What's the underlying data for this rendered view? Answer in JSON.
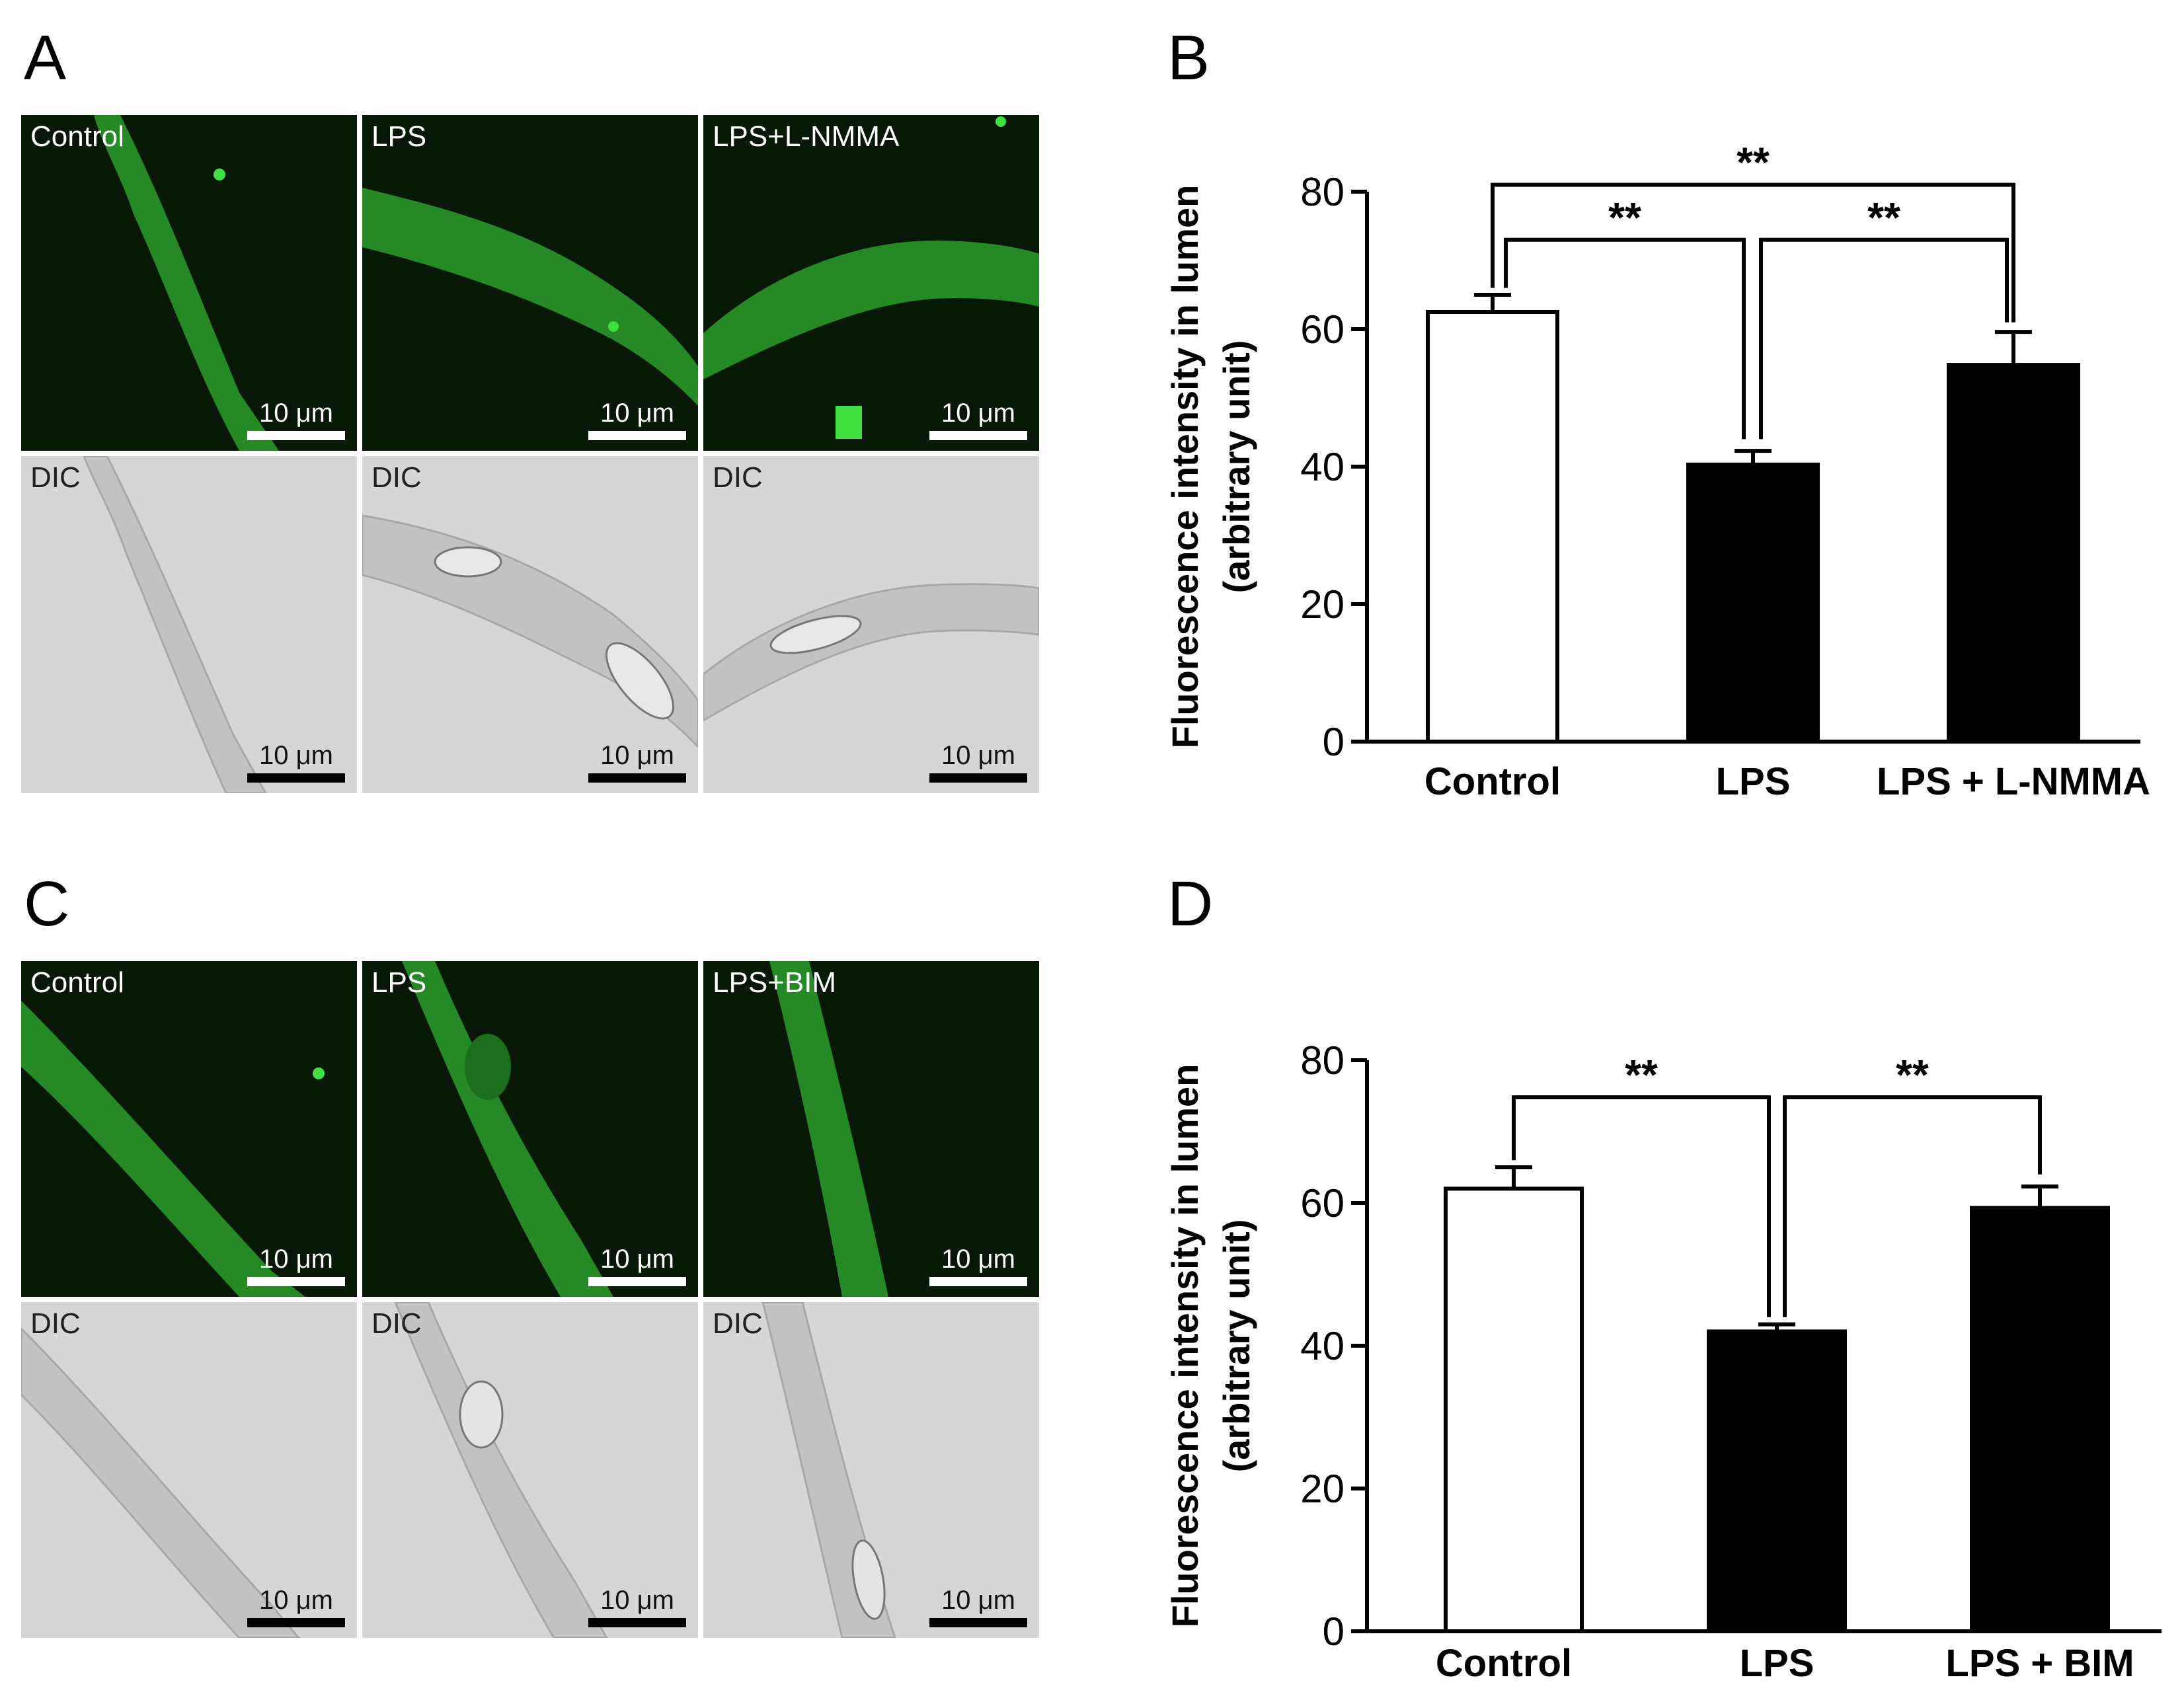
{
  "figure": {
    "panels": {
      "a": {
        "letter": "A"
      },
      "b": {
        "letter": "B"
      },
      "c": {
        "letter": "C"
      },
      "d": {
        "letter": "D"
      }
    },
    "micrographs_a": {
      "fluorescence": [
        {
          "label": "Control",
          "scale": "10 μm"
        },
        {
          "label": "LPS",
          "scale": "10 μm"
        },
        {
          "label": "LPS+L-NMMA",
          "scale": "10 μm"
        }
      ],
      "dic": [
        {
          "label": "DIC",
          "scale": "10 μm"
        },
        {
          "label": "DIC",
          "scale": "10 μm"
        },
        {
          "label": "DIC",
          "scale": "10 μm"
        }
      ]
    },
    "micrographs_c": {
      "fluorescence": [
        {
          "label": "Control",
          "scale": "10 μm"
        },
        {
          "label": "LPS",
          "scale": "10 μm"
        },
        {
          "label": "LPS+BIM",
          "scale": "10 μm"
        }
      ],
      "dic": [
        {
          "label": "DIC",
          "scale": "10 μm"
        },
        {
          "label": "DIC",
          "scale": "10 μm"
        },
        {
          "label": "DIC",
          "scale": "10 μm"
        }
      ]
    },
    "colors": {
      "fluorescence_bg": "#061a06",
      "fluorescence_signal": "#2ecc2e",
      "dic_bg": "#d4d4d4"
    }
  },
  "chart_data": [
    {
      "panel": "B",
      "type": "bar",
      "categories": [
        "Control",
        "LPS",
        "LPS + L-NMMA"
      ],
      "values": [
        62.5,
        40.3,
        54.8
      ],
      "errors": [
        2.5,
        2.0,
        4.8
      ],
      "fills": [
        "#ffffff",
        "#000000",
        "#000000"
      ],
      "ylabel": [
        "Fluorescence intensity in lumen",
        "(arbitrary unit)"
      ],
      "ylim": [
        0,
        80
      ],
      "yticks": [
        "0",
        "20",
        "40",
        "60",
        "80"
      ],
      "significance": [
        {
          "from": 0,
          "to": 1,
          "label": "**"
        },
        {
          "from": 1,
          "to": 2,
          "label": "**"
        },
        {
          "from": 0,
          "to": 2,
          "label": "**"
        }
      ]
    },
    {
      "panel": "D",
      "type": "bar",
      "categories": [
        "Control",
        "LPS",
        "LPS + BIM"
      ],
      "values": [
        62.0,
        42.0,
        59.3
      ],
      "errors": [
        3.0,
        1.0,
        3.0
      ],
      "fills": [
        "#ffffff",
        "#000000",
        "#000000"
      ],
      "ylabel": [
        "Fluorescence intensity in lumen",
        "(arbitrary unit)"
      ],
      "ylim": [
        0,
        80
      ],
      "yticks": [
        "0",
        "20",
        "40",
        "60",
        "80"
      ],
      "significance": [
        {
          "from": 0,
          "to": 1,
          "label": "**"
        },
        {
          "from": 1,
          "to": 2,
          "label": "**"
        }
      ]
    }
  ]
}
